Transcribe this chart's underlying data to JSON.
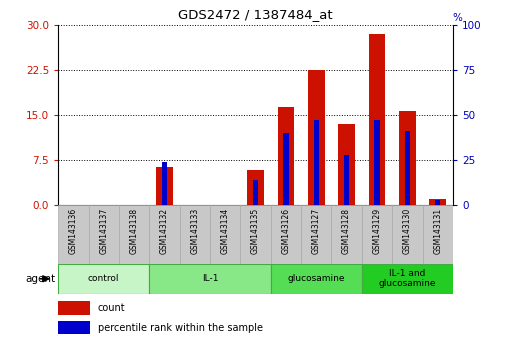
{
  "title": "GDS2472 / 1387484_at",
  "categories": [
    "GSM143136",
    "GSM143137",
    "GSM143138",
    "GSM143132",
    "GSM143133",
    "GSM143134",
    "GSM143135",
    "GSM143126",
    "GSM143127",
    "GSM143128",
    "GSM143129",
    "GSM143130",
    "GSM143131"
  ],
  "count_values": [
    0,
    0,
    0,
    6.3,
    0,
    0,
    5.8,
    16.3,
    22.5,
    13.5,
    28.5,
    15.7,
    1.1
  ],
  "percentile_values": [
    0,
    0,
    0,
    24,
    0,
    0,
    14,
    40,
    47,
    28,
    47,
    41,
    3
  ],
  "left_ylim": [
    0,
    30
  ],
  "right_ylim": [
    0,
    100
  ],
  "left_yticks": [
    0,
    7.5,
    15,
    22.5,
    30
  ],
  "right_yticks": [
    0,
    25,
    50,
    75,
    100
  ],
  "groups": [
    {
      "label": "control",
      "start": 0,
      "end": 3
    },
    {
      "label": "IL-1",
      "start": 3,
      "end": 7
    },
    {
      "label": "glucosamine",
      "start": 7,
      "end": 10
    },
    {
      "label": "IL-1 and\nglucosamine",
      "start": 10,
      "end": 13
    }
  ],
  "group_colors": [
    "#c8f5c8",
    "#88e888",
    "#55dd55",
    "#22cc22"
  ],
  "bar_color_red": "#cc1100",
  "bar_color_blue": "#0000cc",
  "red_bar_width": 0.55,
  "blue_bar_width": 0.18,
  "tick_label_color_left": "#cc1100",
  "tick_label_color_right": "#0000bb",
  "xtick_bg_color": "#c8c8c8",
  "agent_label": "agent",
  "legend_count": "count",
  "legend_percentile": "percentile rank within the sample"
}
